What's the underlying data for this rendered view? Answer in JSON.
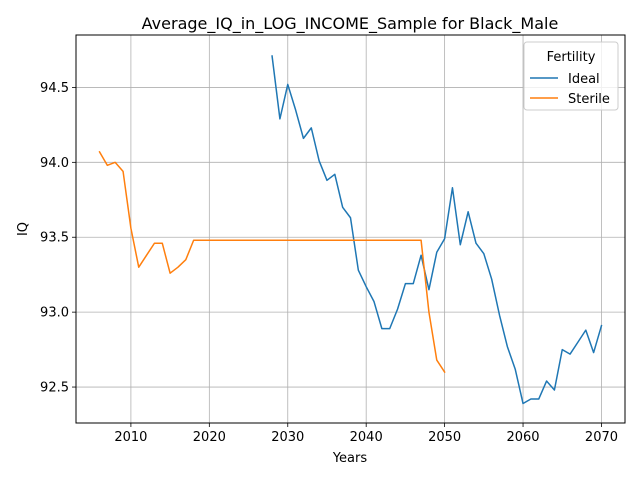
{
  "chart_data": {
    "type": "line",
    "title": "Average_IQ_in_LOG_INCOME_Sample for Black_Male",
    "xlabel": "Years",
    "ylabel": "IQ",
    "xlim": [
      2003,
      2073
    ],
    "ylim": [
      92.26,
      94.85
    ],
    "xticks": [
      2010,
      2020,
      2030,
      2040,
      2050,
      2060,
      2070
    ],
    "yticks": [
      92.5,
      93.0,
      93.5,
      94.0,
      94.5
    ],
    "ytick_labels": [
      "92.5",
      "93.0",
      "93.5",
      "94.0",
      "94.5"
    ],
    "grid": true,
    "legend": {
      "title": "Fertility",
      "placement": "top-right"
    },
    "series": [
      {
        "name": "Ideal",
        "color": "#1f77b4",
        "x": [
          2028,
          2029,
          2030,
          2031,
          2032,
          2033,
          2034,
          2035,
          2036,
          2037,
          2038,
          2039,
          2040,
          2041,
          2042,
          2043,
          2044,
          2045,
          2046,
          2047,
          2048,
          2049,
          2050,
          2051,
          2052,
          2053,
          2054,
          2055,
          2056,
          2057,
          2058,
          2059,
          2060,
          2061,
          2062,
          2063,
          2064,
          2065,
          2066,
          2067,
          2068,
          2069,
          2070
        ],
        "values": [
          94.71,
          94.29,
          94.52,
          94.35,
          94.16,
          94.23,
          94.01,
          93.88,
          93.92,
          93.7,
          93.63,
          93.28,
          93.17,
          93.07,
          92.89,
          92.89,
          93.02,
          93.19,
          93.19,
          93.38,
          93.15,
          93.4,
          93.49,
          93.83,
          93.45,
          93.67,
          93.46,
          93.39,
          93.22,
          92.98,
          92.77,
          92.62,
          92.39,
          92.42,
          92.42,
          92.54,
          92.48,
          92.75,
          92.72,
          92.8,
          92.88,
          92.73,
          92.91
        ]
      },
      {
        "name": "Sterile",
        "color": "#ff7f0e",
        "x": [
          2006,
          2007,
          2008,
          2009,
          2010,
          2011,
          2012,
          2013,
          2014,
          2015,
          2016,
          2017,
          2018,
          2019,
          2020,
          2021,
          2022,
          2023,
          2024,
          2025,
          2026,
          2027,
          2028,
          2029,
          2030,
          2031,
          2032,
          2033,
          2034,
          2035,
          2036,
          2037,
          2038,
          2039,
          2040,
          2041,
          2042,
          2043,
          2044,
          2045,
          2046,
          2047,
          2048,
          2049,
          2050
        ],
        "values": [
          94.07,
          93.98,
          94.0,
          93.94,
          93.56,
          93.3,
          93.38,
          93.46,
          93.46,
          93.26,
          93.3,
          93.35,
          93.48,
          93.48,
          93.48,
          93.48,
          93.48,
          93.48,
          93.48,
          93.48,
          93.48,
          93.48,
          93.48,
          93.48,
          93.48,
          93.48,
          93.48,
          93.48,
          93.48,
          93.48,
          93.48,
          93.48,
          93.48,
          93.48,
          93.48,
          93.48,
          93.48,
          93.48,
          93.48,
          93.48,
          93.48,
          93.48,
          93.0,
          92.68,
          92.6
        ]
      }
    ]
  }
}
